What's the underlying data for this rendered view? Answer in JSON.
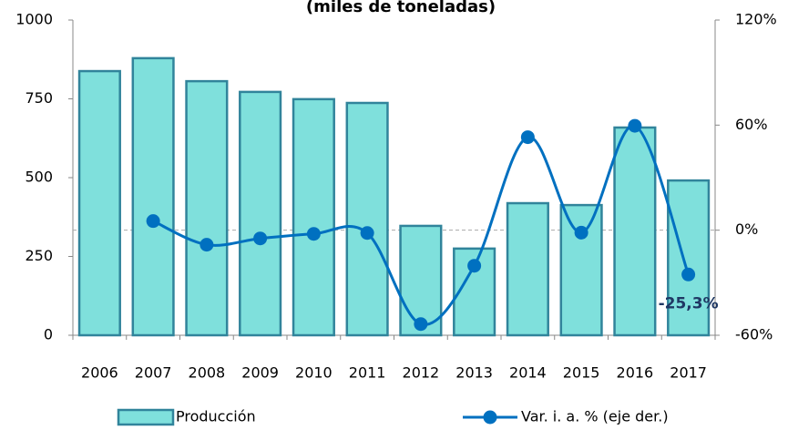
{
  "chart_data": {
    "type": "bar_line",
    "title": "(miles de toneladas)",
    "categories": [
      "2006",
      "2007",
      "2008",
      "2009",
      "2010",
      "2011",
      "2012",
      "2013",
      "2014",
      "2015",
      "2016",
      "2017"
    ],
    "series": [
      {
        "name": "Producción",
        "type": "bar",
        "color": "#7fe0dc",
        "edge": "#31849b",
        "values": [
          838,
          879,
          806,
          772,
          749,
          737,
          347,
          275,
          419,
          413,
          659,
          491
        ]
      },
      {
        "name": "Var. i. a. % (eje der.)",
        "type": "line",
        "axis": "y2",
        "color": "#0070c0",
        "values": [
          null,
          5.2,
          -8.3,
          -4.7,
          -2.1,
          -1.6,
          -53.6,
          -20.3,
          53.1,
          -1.4,
          59.6,
          -25.3
        ],
        "value_labels": [
          null,
          null,
          null,
          null,
          null,
          null,
          null,
          null,
          null,
          null,
          null,
          "-25,3%"
        ]
      }
    ],
    "ylim": [
      0,
      1000
    ],
    "yticks": [
      0,
      250,
      500,
      750,
      1000
    ],
    "y2lim": [
      -60,
      120
    ],
    "y2ticks": [
      {
        "value": -60,
        "label": "-60%"
      },
      {
        "value": 0,
        "label": "0%"
      },
      {
        "value": 60,
        "label": "60%"
      },
      {
        "value": 120,
        "label": "120%"
      }
    ],
    "zero_line_y2": true,
    "legend": "bottom"
  }
}
